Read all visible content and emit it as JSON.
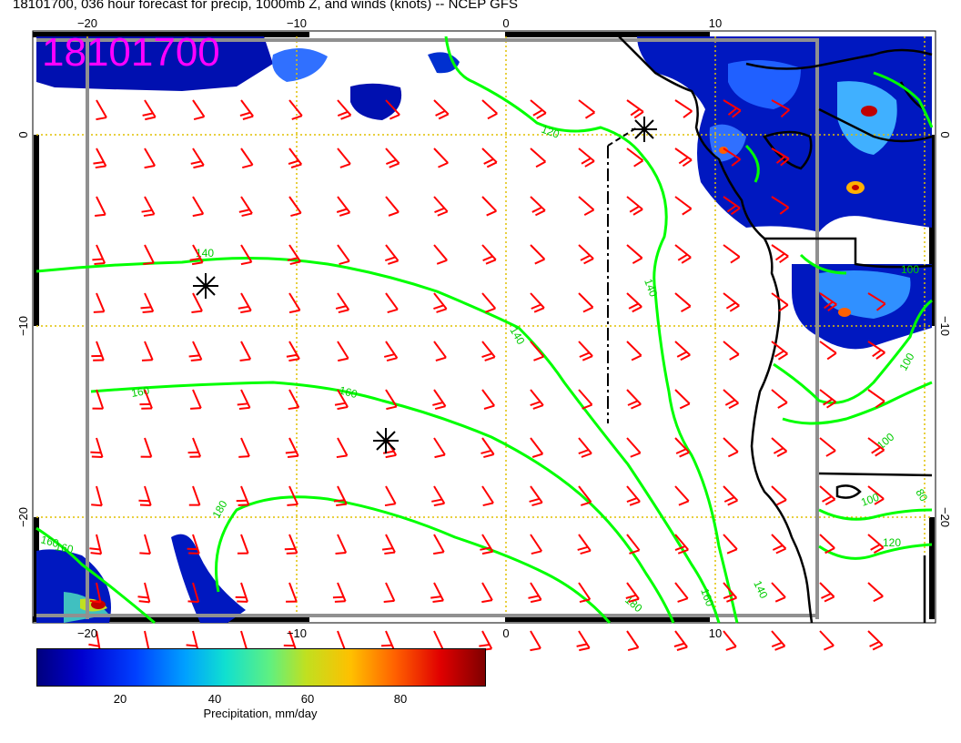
{
  "title": "18101700, 036 hour forecast for precip, 1000mb Z, and winds (knots) -- NCEP GFS",
  "timestamp_label": "18101700",
  "lon_ticks": [
    "−20",
    "−10",
    "0",
    "10"
  ],
  "lat_ticks": [
    "0",
    "−10",
    "−20"
  ],
  "contour_labels": [
    "120",
    "140",
    "140",
    "140",
    "160",
    "160",
    "160",
    "160",
    "180",
    "180",
    "160",
    "140",
    "100",
    "100",
    "100",
    "80",
    "120",
    "100"
  ],
  "colorbar": {
    "ticks": [
      "20",
      "40",
      "60",
      "80"
    ],
    "label": "Precipitation, mm/day"
  },
  "colors": {
    "contour": "#00ff00",
    "barbs": "#ff0000",
    "stamp": "#ff00ff",
    "grid": "#e0c000",
    "coast": "#000000",
    "precip_low": "#00007f",
    "precip_high": "#7f0000"
  },
  "icons": [
    "low-pressure-center-icon",
    "wind-barb-icon"
  ]
}
